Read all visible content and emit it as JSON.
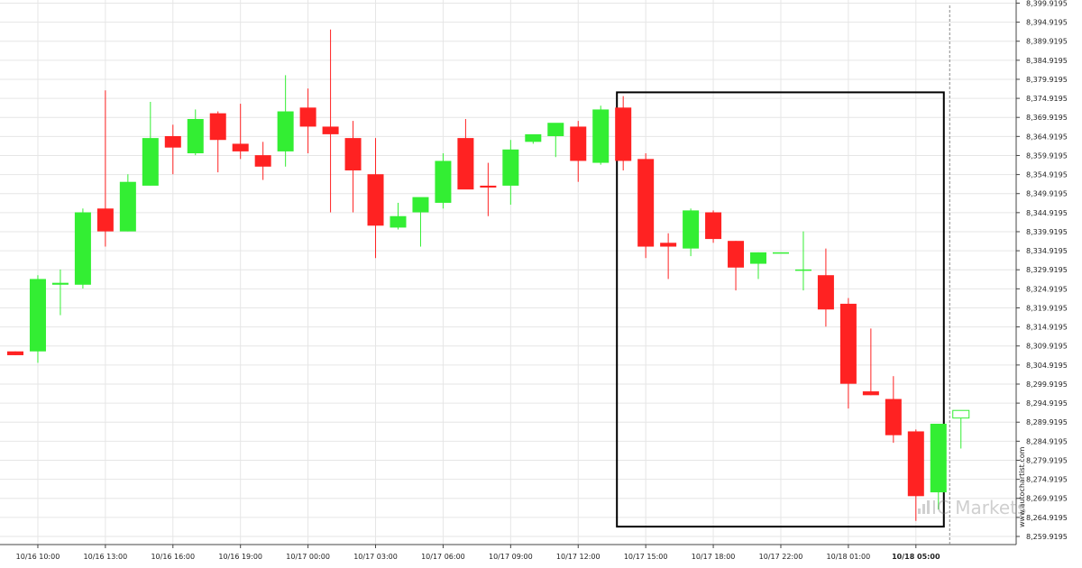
{
  "chart_data": {
    "type": "candlestick",
    "x_tick_labels": [
      "10/16 10:00",
      "10/16 13:00",
      "10/16 16:00",
      "10/16 19:00",
      "10/17 00:00",
      "10/17 03:00",
      "10/17 06:00",
      "10/17 09:00",
      "10/17 12:00",
      "10/17 15:00",
      "10/17 18:00",
      "10/17 22:00",
      "10/18 01:00",
      "10/18 05:00"
    ],
    "highlighted_x_tick": "10/18 05:00",
    "y_tick_labels": [
      "8,399.9195",
      "8,394.9195",
      "8,389.9195",
      "8,384.9195",
      "8,379.9195",
      "8,374.9195",
      "8,369.9195",
      "8,364.9195",
      "8,359.9195",
      "8,354.9195",
      "8,349.9195",
      "8,344.9195",
      "8,339.9195",
      "8,334.9195",
      "8,329.9195",
      "8,324.9195",
      "8,319.9195",
      "8,314.9195",
      "8,309.9195",
      "8,304.9195",
      "8,299.9195",
      "8,294.9195",
      "8,289.9195",
      "8,284.9195",
      "8,279.9195",
      "8,274.9195",
      "8,269.9195",
      "8,264.9195",
      "8,259.9195"
    ],
    "ylim": [
      8258.5,
      8400.5
    ],
    "y_axis_position": "right",
    "grid": true,
    "colors": {
      "up": "#33ee33",
      "down": "#ff2222",
      "grid": "#e6e6e6",
      "pattern_box": "#000000",
      "forecast_line": "#888888"
    },
    "candles": [
      {
        "o": 8308.5,
        "h": 8308.5,
        "l": 8307.5,
        "c": 8307.5
      },
      {
        "o": 8308.5,
        "h": 8328.5,
        "l": 8305.5,
        "c": 8327.5
      },
      {
        "o": 8326.0,
        "h": 8330.0,
        "l": 8318.0,
        "c": 8326.5
      },
      {
        "o": 8326.0,
        "h": 8346.0,
        "l": 8325.0,
        "c": 8345.0
      },
      {
        "o": 8346.0,
        "h": 8377.0,
        "l": 8336.0,
        "c": 8340.0
      },
      {
        "o": 8340.0,
        "h": 8355.0,
        "l": 8340.0,
        "c": 8353.0
      },
      {
        "o": 8352.0,
        "h": 8374.0,
        "l": 8352.0,
        "c": 8364.5
      },
      {
        "o": 8365.0,
        "h": 8368.0,
        "l": 8355.0,
        "c": 8362.0
      },
      {
        "o": 8360.5,
        "h": 8372.0,
        "l": 8360.0,
        "c": 8369.5
      },
      {
        "o": 8371.0,
        "h": 8371.5,
        "l": 8355.5,
        "c": 8364.0
      },
      {
        "o": 8363.0,
        "h": 8373.5,
        "l": 8359.0,
        "c": 8361.0
      },
      {
        "o": 8360.0,
        "h": 8363.5,
        "l": 8353.5,
        "c": 8357.0
      },
      {
        "o": 8361.0,
        "h": 8381.0,
        "l": 8357.0,
        "c": 8371.5
      },
      {
        "o": 8372.5,
        "h": 8377.5,
        "l": 8360.5,
        "c": 8367.5
      },
      {
        "o": 8367.5,
        "h": 8393.0,
        "l": 8345.0,
        "c": 8365.5
      },
      {
        "o": 8364.5,
        "h": 8369.0,
        "l": 8345.0,
        "c": 8356.0
      },
      {
        "o": 8355.0,
        "h": 8364.5,
        "l": 8333.0,
        "c": 8341.5
      },
      {
        "o": 8341.0,
        "h": 8347.5,
        "l": 8340.5,
        "c": 8344.0
      },
      {
        "o": 8345.0,
        "h": 8348.5,
        "l": 8336.0,
        "c": 8349.0
      },
      {
        "o": 8347.5,
        "h": 8360.5,
        "l": 8346.0,
        "c": 8358.5
      },
      {
        "o": 8364.5,
        "h": 8369.5,
        "l": 8351.5,
        "c": 8351.0
      },
      {
        "o": 8352.0,
        "h": 8358.0,
        "l": 8344.0,
        "c": 8351.5
      },
      {
        "o": 8352.0,
        "h": 8364.0,
        "l": 8347.0,
        "c": 8361.5
      },
      {
        "o": 8363.5,
        "h": 8365.0,
        "l": 8363.0,
        "c": 8365.5
      },
      {
        "o": 8365.0,
        "h": 8368.0,
        "l": 8359.5,
        "c": 8368.5
      },
      {
        "o": 8367.5,
        "h": 8369.0,
        "l": 8353.0,
        "c": 8358.5
      },
      {
        "o": 8358.0,
        "h": 8373.0,
        "l": 8357.5,
        "c": 8372.0
      },
      {
        "o": 8372.5,
        "h": 8375.5,
        "l": 8356.0,
        "c": 8358.5
      },
      {
        "o": 8359.0,
        "h": 8360.5,
        "l": 8333.0,
        "c": 8336.0
      },
      {
        "o": 8337.0,
        "h": 8339.5,
        "l": 8327.5,
        "c": 8336.0
      },
      {
        "o": 8335.5,
        "h": 8346.0,
        "l": 8333.5,
        "c": 8345.5
      },
      {
        "o": 8345.0,
        "h": 8345.5,
        "l": 8337.0,
        "c": 8338.0
      },
      {
        "o": 8337.5,
        "h": 8337.5,
        "l": 8324.5,
        "c": 8330.5
      },
      {
        "o": 8331.5,
        "h": 8334.5,
        "l": 8327.5,
        "c": 8334.5
      },
      {
        "o": 8334.5,
        "h": 8334.5,
        "l": 8334.5,
        "c": 8334.5
      },
      {
        "o": 8330.0,
        "h": 8340.0,
        "l": 8324.5,
        "c": 8330.0
      },
      {
        "o": 8328.5,
        "h": 8335.5,
        "l": 8315.0,
        "c": 8319.5
      },
      {
        "o": 8321.0,
        "h": 8322.5,
        "l": 8293.5,
        "c": 8300.0
      },
      {
        "o": 8298.0,
        "h": 8314.5,
        "l": 8297.0,
        "c": 8297.0
      },
      {
        "o": 8296.0,
        "h": 8302.0,
        "l": 8284.5,
        "c": 8286.5
      },
      {
        "o": 8287.5,
        "h": 8288.0,
        "l": 8264.0,
        "c": 8270.5
      },
      {
        "o": 8271.5,
        "h": 8289.5,
        "l": 8267.0,
        "c": 8289.5
      },
      {
        "o": 8291.0,
        "h": 8293.0,
        "l": 8283.0,
        "c": 8293.0,
        "hollow": true
      }
    ],
    "pattern_box": {
      "x_from_index": 27,
      "x_to_index": 41,
      "y_top": 8376.5,
      "y_bottom": 8262.5
    },
    "forecast_line_index": 41.5,
    "x_tick_indices": [
      1,
      4,
      7,
      10,
      13,
      16,
      19,
      22,
      25,
      28,
      31,
      34,
      37,
      40
    ]
  },
  "side_watermark": "www.autochartist.com",
  "brand_watermark": "IC Markets"
}
